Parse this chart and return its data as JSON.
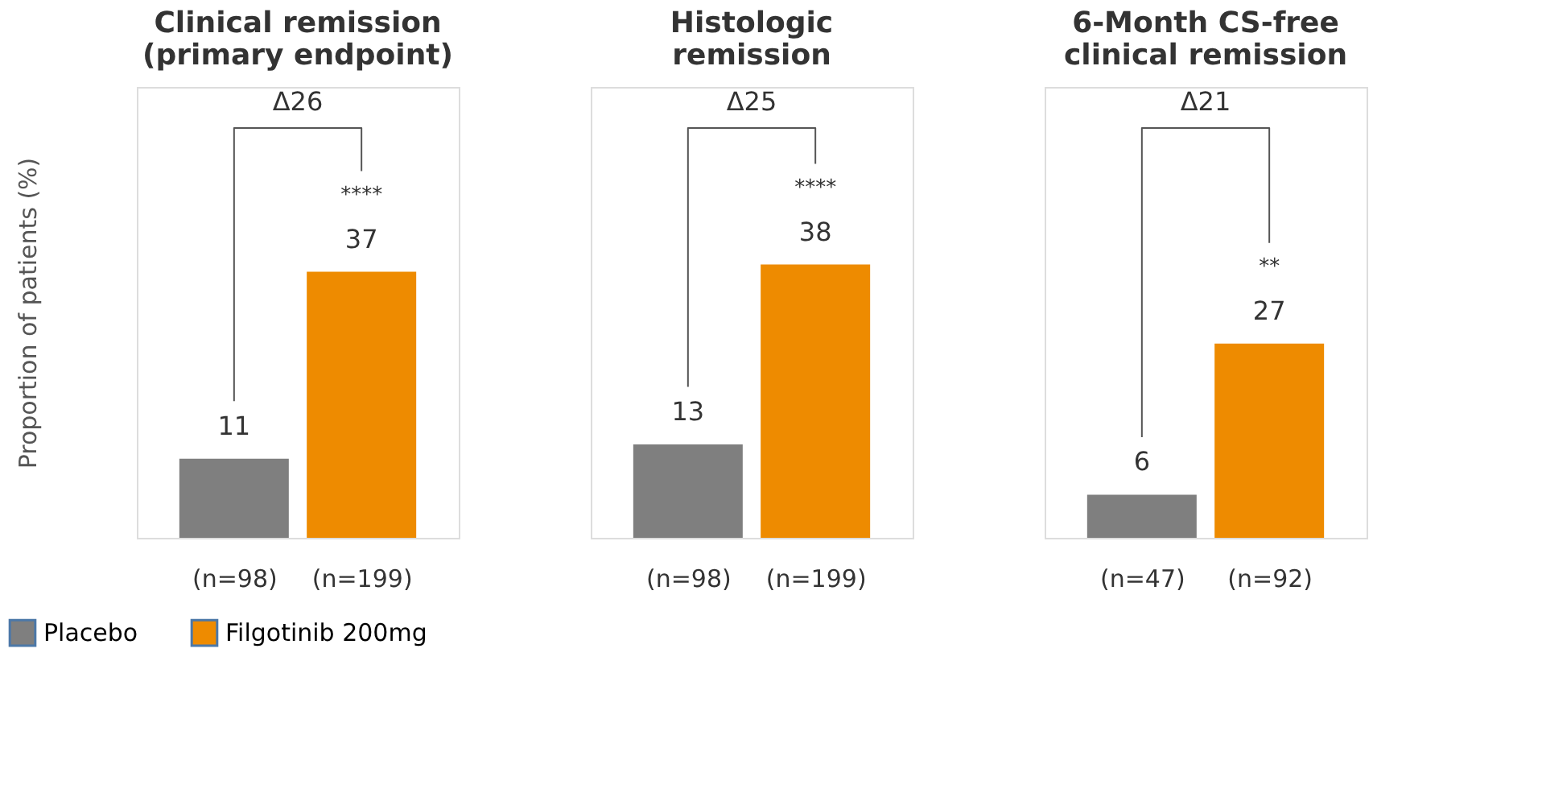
{
  "chart_data": [
    {
      "type": "bar",
      "title": "Clinical remission\n(primary endpoint)",
      "ylabel": "Proportion of patients (%)",
      "categories": [
        "(n=98)",
        "(n=199)"
      ],
      "series": [
        {
          "name": "Placebo",
          "color": "#7f7f7f",
          "values": [
            11,
            null
          ]
        },
        {
          "name": "Filgotinib 200mg",
          "color": "#ee8b00",
          "values": [
            null,
            37
          ]
        }
      ],
      "data_labels": true,
      "annotations": [
        "Δ26",
        "****"
      ],
      "tick_labels": "x",
      "legend": "bottom"
    },
    {
      "type": "bar",
      "title": "Histologic\nremission",
      "categories": [
        "(n=98)",
        "(n=199)"
      ],
      "series": [
        {
          "color": "#7f7f7f",
          "values": [
            13,
            null
          ]
        },
        {
          "color": "#ee8b00",
          "values": [
            null,
            38
          ]
        }
      ],
      "data_labels": true,
      "annotations": [
        "Δ25",
        "****"
      ],
      "tick_labels": "x"
    },
    {
      "type": "bar",
      "title": "6-Month CS-free\nclinical remission",
      "categories": [
        "(n=47)",
        "(n=92)"
      ],
      "series": [
        {
          "color": "#7f7f7f",
          "values": [
            6,
            null
          ]
        },
        {
          "color": "#ee8b00",
          "values": [
            null,
            27
          ]
        }
      ],
      "data_labels": true,
      "annotations": [
        "Δ21",
        "**"
      ],
      "tick_labels": "x"
    }
  ]
}
